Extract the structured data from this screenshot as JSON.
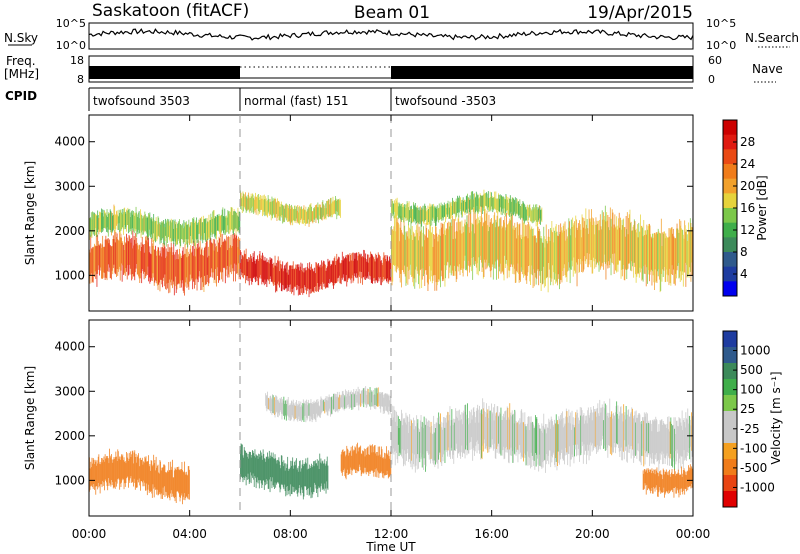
{
  "header": {
    "station": "Saskatoon (fitACF)",
    "beam": "Beam 01",
    "date": "19/Apr/2015"
  },
  "top_panels": {
    "nsky_label": "N.Sky",
    "nsky_ticks": [
      "10^5",
      "10^0"
    ],
    "nsearch_label": "N.Search",
    "nsearch_ticks": [
      "10^5",
      "10^0"
    ],
    "freq_label_1": "Freq.",
    "freq_label_2": "[MHz]",
    "freq_ticks": [
      "18",
      "8"
    ],
    "nave_label": "Nave",
    "nave_ticks": [
      "60",
      "0"
    ],
    "cpid_label": "CPID",
    "cpid_segments": [
      {
        "label": "twofsound 3503",
        "start": 0,
        "end": 6
      },
      {
        "label": "normal (fast) 151",
        "start": 6,
        "end": 12
      },
      {
        "label": "twofsound -3503",
        "start": 12,
        "end": 24
      }
    ]
  },
  "x_axis": {
    "label": "Time UT",
    "ticks": [
      "00:00",
      "04:00",
      "08:00",
      "12:00",
      "16:00",
      "20:00",
      "00:00"
    ]
  },
  "panels": [
    {
      "ylabel": "Slant Range [km]",
      "colorbar_label": "Power [dB]",
      "yticks": [
        "4000",
        "3000",
        "2000",
        "1000"
      ]
    },
    {
      "ylabel": "Slant Range [km]",
      "colorbar_label": "Velocity [m s⁻¹]",
      "yticks": [
        "4000",
        "3000",
        "2000",
        "1000"
      ]
    }
  ],
  "power_colorbar": {
    "ticks": [
      "28",
      "24",
      "20",
      "16",
      "12",
      "8",
      "4"
    ],
    "colors": [
      "#0000ee",
      "#1e3ca0",
      "#2f5a8c",
      "#3c8a5a",
      "#3fae4a",
      "#7cc84a",
      "#e6d33c",
      "#f2a12c",
      "#f07c1a",
      "#ea4a14",
      "#e01a10",
      "#cc0000"
    ]
  },
  "velocity_colorbar": {
    "ticks": [
      "1000",
      "500",
      "100",
      "25",
      "-25",
      "-100",
      "-500",
      "-1000"
    ],
    "colors": [
      "#e00000",
      "#e84412",
      "#f07c1a",
      "#f4a020",
      "#c8c8c8",
      "#c8c8c8",
      "#7cc84a",
      "#3fae4a",
      "#3c8a5a",
      "#2f5a8c",
      "#1e3ca0"
    ]
  },
  "chart_data": {
    "type": "heatmap",
    "title": "Saskatoon (fitACF)",
    "subtitle": "Beam 01",
    "xlabel": "Time UT",
    "ylabel": "Slant Range [km]",
    "xlim": [
      0,
      24
    ],
    "ylim": [
      200,
      4600
    ],
    "mode_change_times": [
      6,
      12
    ],
    "power_bands": [
      {
        "t0": 0,
        "t1": 6,
        "r_center": 1300,
        "r_width": 900,
        "level_dB": 24
      },
      {
        "t0": 0,
        "t1": 6,
        "r_center": 2100,
        "r_width": 500,
        "level_dB": 14
      },
      {
        "t0": 6,
        "t1": 12,
        "r_center": 1050,
        "r_width": 600,
        "level_dB": 28
      },
      {
        "t0": 6,
        "t1": 10,
        "r_center": 2500,
        "r_width": 400,
        "level_dB": 16
      },
      {
        "t0": 12,
        "t1": 24,
        "r_center": 1600,
        "r_width": 1200,
        "level_dB": 18
      },
      {
        "t0": 12,
        "t1": 18,
        "r_center": 2500,
        "r_width": 400,
        "level_dB": 14
      }
    ],
    "velocity_bands": [
      {
        "t0": 0,
        "t1": 4,
        "r_center": 1100,
        "r_width": 700,
        "velocity": -300
      },
      {
        "t0": 6,
        "t1": 9.5,
        "r_center": 1200,
        "r_width": 700,
        "velocity": 400
      },
      {
        "t0": 10,
        "t1": 12,
        "r_center": 1300,
        "r_width": 600,
        "velocity": -300
      },
      {
        "t0": 7,
        "t1": 12,
        "r_center": 2700,
        "r_width": 400,
        "velocity": 0
      },
      {
        "t0": 12,
        "t1": 24,
        "r_center": 2000,
        "r_width": 1000,
        "velocity": 0
      },
      {
        "t0": 22,
        "t1": 24,
        "r_center": 1100,
        "r_width": 500,
        "velocity": -300
      }
    ]
  }
}
